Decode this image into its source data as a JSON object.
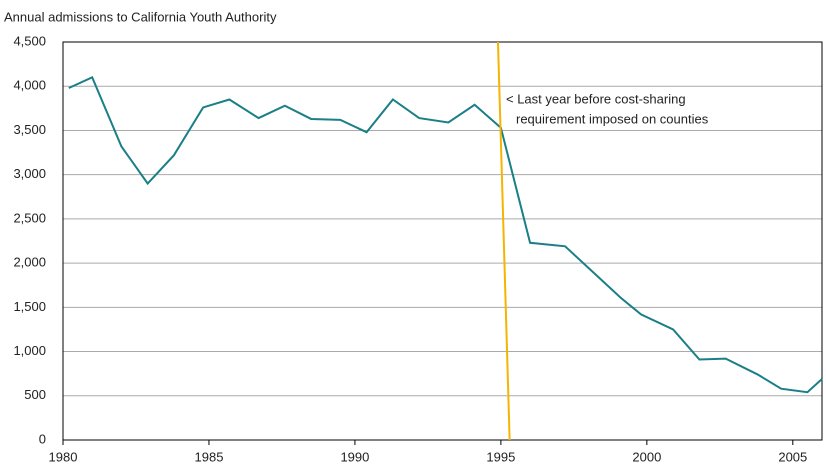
{
  "chart_data": {
    "type": "line",
    "title": "Annual admissions to California Youth Authority",
    "x": [
      1980.2,
      1981.0,
      1982.0,
      1982.9,
      1983.8,
      1984.8,
      1985.7,
      1986.7,
      1987.6,
      1988.5,
      1989.5,
      1990.4,
      1991.3,
      1992.2,
      1993.2,
      1994.1,
      1995.0,
      1996.0,
      1997.2,
      1999.1,
      1999.8,
      2000.9,
      2001.8,
      2002.7,
      2003.8,
      2004.6,
      2005.5,
      2006.0
    ],
    "series": [
      {
        "color": "#1a7f86",
        "values": [
          3980,
          4100,
          3320,
          2900,
          3220,
          3760,
          3850,
          3640,
          3780,
          3630,
          3620,
          3480,
          3850,
          3640,
          3590,
          3790,
          3530,
          2230,
          2190,
          1610,
          1420,
          1250,
          910,
          920,
          740,
          580,
          540,
          690
        ]
      }
    ],
    "xlim": [
      1980,
      2006
    ],
    "xticks": [
      1980,
      1985,
      1990,
      1995,
      2000,
      2005
    ],
    "ylim": [
      0,
      4500
    ],
    "yticks": [
      0,
      {
        "value": 500,
        "label": "500"
      },
      {
        "value": 1000,
        "label": "1,000"
      },
      {
        "value": 1500,
        "label": "1,500"
      },
      {
        "value": 2000,
        "label": "2,000"
      },
      {
        "value": 2500,
        "label": "2,500"
      },
      {
        "value": 3000,
        "label": "3,000"
      },
      {
        "value": 3500,
        "label": "3,500"
      },
      {
        "value": 4000,
        "label": "4,000"
      },
      {
        "value": 4500,
        "label": "4,500"
      }
    ],
    "grid": true,
    "reference_line": {
      "x": [
        1994.9,
        1995.3
      ],
      "color": "#f5b400"
    },
    "annotation": [
      "< Last year before cost-sharing",
      "requirement imposed on counties"
    ]
  }
}
